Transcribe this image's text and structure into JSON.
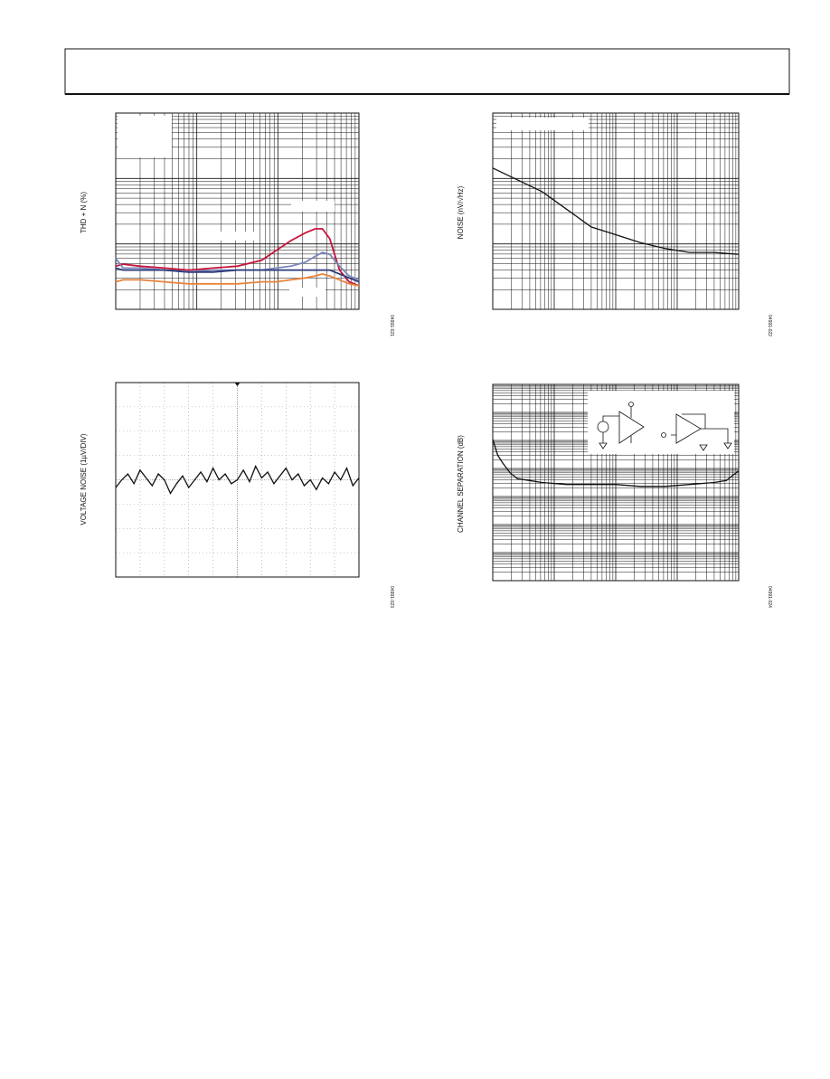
{
  "chart_data": [
    {
      "type": "line",
      "y_label": "THD + N (%)",
      "code": "04991-021",
      "grid": "log",
      "xlim": [
        0,
        1
      ],
      "ylim": [
        0,
        1
      ],
      "x": [
        0,
        0.03,
        0.1,
        0.2,
        0.3,
        0.4,
        0.5,
        0.6,
        0.66,
        0.72,
        0.78,
        0.82,
        0.85,
        0.88,
        0.92,
        0.96,
        1
      ],
      "series": [
        {
          "color": "#c8143c",
          "values": [
            0.22,
            0.23,
            0.22,
            0.21,
            0.2,
            0.21,
            0.22,
            0.25,
            0.3,
            0.35,
            0.39,
            0.41,
            0.41,
            0.36,
            0.2,
            0.14,
            0.12
          ]
        },
        {
          "color": "#7a86b8",
          "values": [
            0.26,
            0.21,
            0.21,
            0.2,
            0.19,
            0.2,
            0.2,
            0.2,
            0.21,
            0.22,
            0.24,
            0.27,
            0.29,
            0.28,
            0.22,
            0.17,
            0.15
          ]
        },
        {
          "color": "#2b3a7a",
          "values": [
            0.21,
            0.2,
            0.2,
            0.2,
            0.19,
            0.19,
            0.2,
            0.2,
            0.2,
            0.2,
            0.2,
            0.2,
            0.2,
            0.2,
            0.18,
            0.16,
            0.14
          ]
        },
        {
          "color": "#e8843c",
          "values": [
            0.14,
            0.15,
            0.15,
            0.14,
            0.13,
            0.13,
            0.13,
            0.14,
            0.14,
            0.15,
            0.16,
            0.17,
            0.18,
            0.17,
            0.15,
            0.13,
            0.12
          ]
        }
      ]
    },
    {
      "type": "line",
      "y_label": "NOISE (nV/√Hz)",
      "code": "04991-022",
      "grid": "log",
      "xlim": [
        0,
        1
      ],
      "ylim": [
        0,
        1
      ],
      "x": [
        0,
        0.1,
        0.2,
        0.3,
        0.4,
        0.5,
        0.6,
        0.7,
        0.8,
        0.9,
        1
      ],
      "series": [
        {
          "color": "#111111",
          "values": [
            0.72,
            0.66,
            0.6,
            0.51,
            0.42,
            0.38,
            0.34,
            0.31,
            0.29,
            0.29,
            0.28
          ]
        }
      ]
    },
    {
      "type": "line",
      "y_label": "VOLTAGE NOISE (1µV/DIV)",
      "code": "04991-023",
      "grid": "scope",
      "xlim": [
        0,
        1
      ],
      "ylim": [
        0,
        1
      ],
      "x": [
        0,
        0.025,
        0.05,
        0.075,
        0.1,
        0.125,
        0.15,
        0.175,
        0.2,
        0.225,
        0.25,
        0.275,
        0.3,
        0.325,
        0.35,
        0.375,
        0.4,
        0.425,
        0.45,
        0.475,
        0.5,
        0.525,
        0.55,
        0.575,
        0.6,
        0.625,
        0.65,
        0.675,
        0.7,
        0.725,
        0.75,
        0.775,
        0.8,
        0.825,
        0.85,
        0.875,
        0.9,
        0.925,
        0.95,
        0.975,
        1
      ],
      "series": [
        {
          "color": "#111111",
          "values": [
            0.46,
            0.5,
            0.53,
            0.48,
            0.55,
            0.51,
            0.47,
            0.53,
            0.5,
            0.43,
            0.48,
            0.52,
            0.46,
            0.5,
            0.54,
            0.49,
            0.56,
            0.5,
            0.53,
            0.48,
            0.5,
            0.55,
            0.49,
            0.57,
            0.51,
            0.54,
            0.48,
            0.52,
            0.56,
            0.5,
            0.53,
            0.47,
            0.5,
            0.45,
            0.51,
            0.48,
            0.54,
            0.5,
            0.56,
            0.47,
            0.51
          ]
        }
      ]
    },
    {
      "type": "line",
      "y_label": "CHANNEL SEPARATION (dB)",
      "code": "04991-024",
      "grid": "log",
      "xlim": [
        0,
        1
      ],
      "ylim": [
        0,
        1
      ],
      "x": [
        0,
        0.02,
        0.04,
        0.07,
        0.1,
        0.15,
        0.2,
        0.3,
        0.4,
        0.5,
        0.6,
        0.7,
        0.8,
        0.9,
        0.95,
        1
      ],
      "series": [
        {
          "color": "#111111",
          "values": [
            0.72,
            0.64,
            0.6,
            0.55,
            0.52,
            0.51,
            0.5,
            0.49,
            0.49,
            0.49,
            0.48,
            0.48,
            0.49,
            0.5,
            0.51,
            0.56
          ]
        }
      ]
    }
  ]
}
